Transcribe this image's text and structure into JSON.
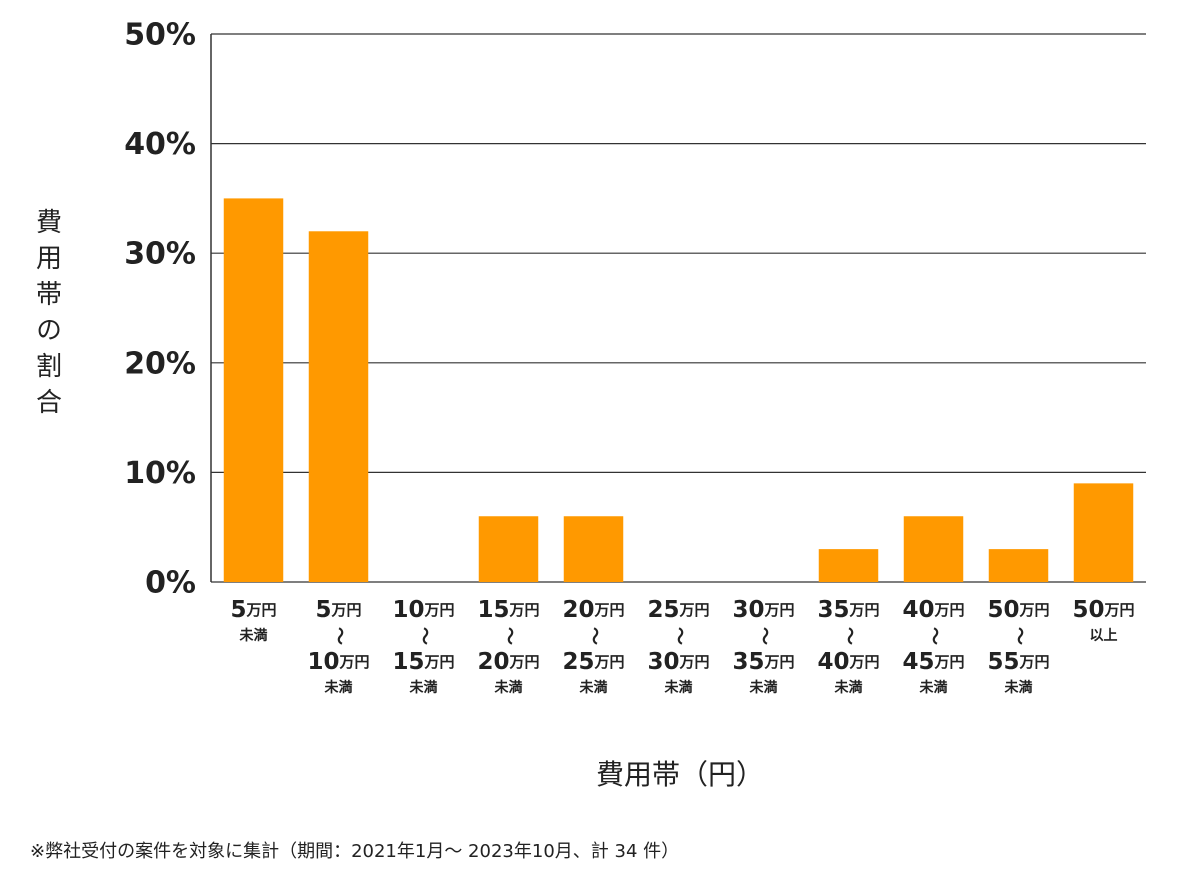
{
  "chart_data": {
    "type": "bar",
    "y_label": "費用帯の割合",
    "x_label": "費用帯（円）",
    "footnote": "※弊社受付の案件を対象に集計（期間：2021年1月～ 2023年10月、計 34 件）",
    "categories": [
      [
        "5万円",
        "未満"
      ],
      [
        "5万円",
        "〜",
        "10万円",
        "未満"
      ],
      [
        "10万円",
        "〜",
        "15万円",
        "未満"
      ],
      [
        "15万円",
        "〜",
        "20万円",
        "未満"
      ],
      [
        "20万円",
        "〜",
        "25万円",
        "未満"
      ],
      [
        "25万円",
        "〜",
        "30万円",
        "未満"
      ],
      [
        "30万円",
        "〜",
        "35万円",
        "未満"
      ],
      [
        "35万円",
        "〜",
        "40万円",
        "未満"
      ],
      [
        "40万円",
        "〜",
        "45万円",
        "未満"
      ],
      [
        "50万円",
        "〜",
        "55万円",
        "未満"
      ],
      [
        "50万円",
        "以上"
      ]
    ],
    "values": [
      35,
      32,
      0,
      6,
      6,
      0,
      0,
      3,
      6,
      3,
      9
    ],
    "color": "#ff9900",
    "ylim": [
      0,
      50
    ],
    "yticks": [
      {
        "value": 0,
        "label": "0%"
      },
      {
        "value": 10,
        "label": "10%"
      },
      {
        "value": 20,
        "label": "20%"
      },
      {
        "value": 30,
        "label": "30%"
      },
      {
        "value": 40,
        "label": "40%"
      },
      {
        "value": 50,
        "label": "50%"
      }
    ],
    "grid": true
  }
}
